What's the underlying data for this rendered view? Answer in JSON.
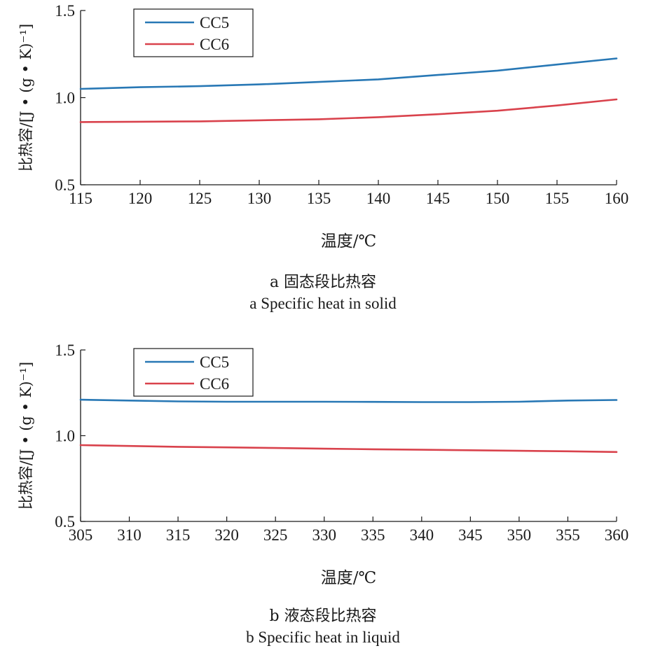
{
  "chart_data": [
    {
      "type": "line",
      "xlabel": "温度/℃",
      "ylabel": "比热容/[J • (g • K)⁻¹]",
      "xlim": [
        115,
        160
      ],
      "ylim": [
        0.5,
        1.5
      ],
      "xticks": [
        "115",
        "120",
        "125",
        "130",
        "135",
        "140",
        "145",
        "150",
        "155",
        "160"
      ],
      "yticks": [
        "0.5",
        "1.0",
        "1.5"
      ],
      "grid": false,
      "legend_position": "top-left",
      "caption_cn": "a  固态段比热容",
      "caption_en": "a  Specific heat in solid",
      "x": [
        115,
        120,
        125,
        130,
        135,
        140,
        145,
        150,
        155,
        160
      ],
      "series": [
        {
          "name": "CC5",
          "color": "#2878b5",
          "values": [
            1.05,
            1.06,
            1.066,
            1.076,
            1.09,
            1.105,
            1.13,
            1.155,
            1.19,
            1.225
          ]
        },
        {
          "name": "CC6",
          "color": "#d9424c",
          "values": [
            0.86,
            0.862,
            0.864,
            0.87,
            0.876,
            0.888,
            0.905,
            0.925,
            0.955,
            0.99
          ]
        }
      ]
    },
    {
      "type": "line",
      "xlabel": "温度/℃",
      "ylabel": "比热容/[J • (g • K)⁻¹]",
      "xlim": [
        305,
        360
      ],
      "ylim": [
        0.5,
        1.5
      ],
      "xticks": [
        "305",
        "310",
        "315",
        "320",
        "325",
        "330",
        "335",
        "340",
        "345",
        "350",
        "355",
        "360"
      ],
      "yticks": [
        "0.5",
        "1.0",
        "1.5"
      ],
      "grid": false,
      "legend_position": "top-left",
      "caption_cn": "b  液态段比热容",
      "caption_en": "b  Specific heat in liquid",
      "x": [
        305,
        310,
        315,
        320,
        325,
        330,
        335,
        340,
        345,
        350,
        355,
        360
      ],
      "series": [
        {
          "name": "CC5",
          "color": "#2878b5",
          "values": [
            1.21,
            1.205,
            1.2,
            1.198,
            1.198,
            1.198,
            1.197,
            1.196,
            1.196,
            1.198,
            1.205,
            1.208
          ]
        },
        {
          "name": "CC6",
          "color": "#d9424c",
          "values": [
            0.945,
            0.94,
            0.935,
            0.932,
            0.928,
            0.924,
            0.921,
            0.918,
            0.915,
            0.912,
            0.909,
            0.905
          ]
        }
      ]
    }
  ]
}
